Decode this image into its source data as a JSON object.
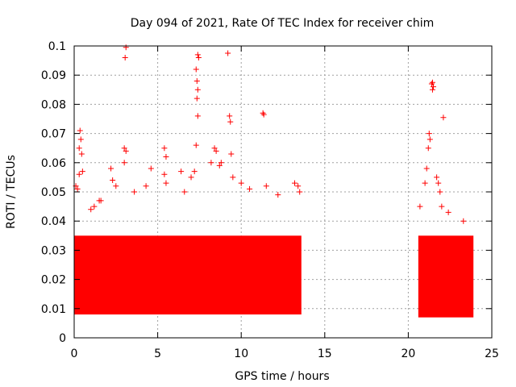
{
  "chart_data": {
    "type": "scatter",
    "title": "Day 094 of 2021, Rate Of TEC Index for receiver chim",
    "xlabel": "GPS time / hours",
    "ylabel": "ROTI / TECUs",
    "xlim": [
      0,
      25
    ],
    "ylim": [
      0,
      0.1
    ],
    "grid": true,
    "marker": "+",
    "x_ticks": [
      0,
      5,
      10,
      15,
      20,
      25
    ],
    "x_tick_labels": [
      "0",
      "5",
      "10",
      "15",
      "20",
      "25"
    ],
    "y_ticks": [
      0,
      0.01,
      0.02,
      0.03,
      0.04,
      0.05,
      0.06,
      0.07,
      0.08,
      0.09,
      0.1
    ],
    "y_tick_labels": [
      "0",
      "0.01",
      "0.02",
      "0.03",
      "0.04",
      "0.05",
      "0.06",
      "0.07",
      "0.08",
      "0.09",
      "0.1"
    ],
    "series": [
      {
        "name": "ROTI",
        "color": "#ff0000",
        "segments": [
          {
            "x_start": 0.0,
            "x_end": 13.6,
            "typical_low": 0.008,
            "typical_high": 0.035
          },
          {
            "x_start": 20.6,
            "x_end": 23.9,
            "typical_low": 0.007,
            "typical_high": 0.035
          }
        ],
        "points": [
          [
            0.1,
            0.052
          ],
          [
            0.2,
            0.051
          ],
          [
            0.3,
            0.065
          ],
          [
            0.35,
            0.071
          ],
          [
            0.4,
            0.068
          ],
          [
            0.45,
            0.063
          ],
          [
            0.3,
            0.056
          ],
          [
            0.5,
            0.057
          ],
          [
            1.0,
            0.044
          ],
          [
            1.2,
            0.045
          ],
          [
            1.5,
            0.047
          ],
          [
            1.6,
            0.047
          ],
          [
            2.2,
            0.058
          ],
          [
            2.3,
            0.054
          ],
          [
            2.5,
            0.052
          ],
          [
            3.0,
            0.065
          ],
          [
            3.1,
            0.064
          ],
          [
            3.0,
            0.06
          ],
          [
            3.1,
            0.0995
          ],
          [
            3.05,
            0.096
          ],
          [
            3.6,
            0.05
          ],
          [
            4.3,
            0.052
          ],
          [
            4.6,
            0.058
          ],
          [
            5.4,
            0.065
          ],
          [
            5.5,
            0.062
          ],
          [
            5.4,
            0.056
          ],
          [
            5.5,
            0.053
          ],
          [
            6.4,
            0.057
          ],
          [
            6.6,
            0.05
          ],
          [
            7.0,
            0.055
          ],
          [
            7.2,
            0.057
          ],
          [
            7.3,
            0.066
          ],
          [
            7.4,
            0.097
          ],
          [
            7.45,
            0.096
          ],
          [
            7.3,
            0.092
          ],
          [
            7.35,
            0.088
          ],
          [
            7.4,
            0.085
          ],
          [
            7.35,
            0.082
          ],
          [
            7.4,
            0.076
          ],
          [
            8.2,
            0.06
          ],
          [
            8.4,
            0.065
          ],
          [
            8.5,
            0.064
          ],
          [
            8.7,
            0.059
          ],
          [
            8.8,
            0.06
          ],
          [
            9.2,
            0.0975
          ],
          [
            9.3,
            0.076
          ],
          [
            9.35,
            0.074
          ],
          [
            9.4,
            0.063
          ],
          [
            9.5,
            0.055
          ],
          [
            10.0,
            0.053
          ],
          [
            10.5,
            0.051
          ],
          [
            11.3,
            0.077
          ],
          [
            11.35,
            0.0765
          ],
          [
            11.5,
            0.052
          ],
          [
            12.2,
            0.049
          ],
          [
            13.2,
            0.053
          ],
          [
            13.4,
            0.052
          ],
          [
            13.5,
            0.05
          ],
          [
            20.7,
            0.045
          ],
          [
            21.0,
            0.053
          ],
          [
            21.1,
            0.058
          ],
          [
            21.2,
            0.065
          ],
          [
            21.25,
            0.07
          ],
          [
            21.3,
            0.068
          ],
          [
            21.4,
            0.087
          ],
          [
            21.45,
            0.0875
          ],
          [
            21.5,
            0.086
          ],
          [
            21.45,
            0.085
          ],
          [
            21.7,
            0.055
          ],
          [
            21.8,
            0.053
          ],
          [
            21.9,
            0.05
          ],
          [
            22.0,
            0.045
          ],
          [
            22.1,
            0.0755
          ],
          [
            22.4,
            0.043
          ],
          [
            23.3,
            0.04
          ],
          [
            23.7,
            0.033
          ]
        ]
      }
    ]
  }
}
